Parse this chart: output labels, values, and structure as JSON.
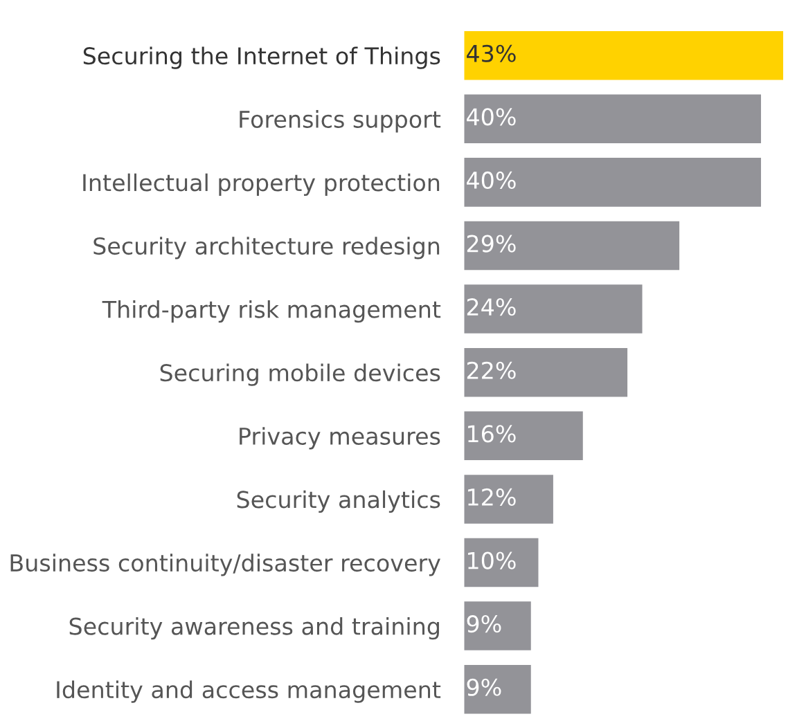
{
  "chart_data": {
    "type": "bar",
    "orientation": "horizontal",
    "categories": [
      "Securing the Internet of Things",
      "Forensics support",
      "Intellectual property protection",
      "Security architecture redesign",
      "Third-party risk management",
      "Securing mobile devices",
      "Privacy measures",
      "Security analytics",
      "Business continuity/disaster recovery",
      "Security awareness and training",
      "Identity and access management"
    ],
    "values": [
      43,
      40,
      40,
      29,
      24,
      22,
      16,
      12,
      10,
      9,
      9
    ],
    "value_labels": [
      "43%",
      "40%",
      "40%",
      "29%",
      "24%",
      "22%",
      "16%",
      "12%",
      "10%",
      "9%",
      "9%"
    ],
    "colors": [
      "#ffd200",
      "#939398",
      "#939398",
      "#939398",
      "#939398",
      "#939398",
      "#939398",
      "#939398",
      "#939398",
      "#939398",
      "#939398"
    ],
    "grid": false,
    "legend": false
  }
}
